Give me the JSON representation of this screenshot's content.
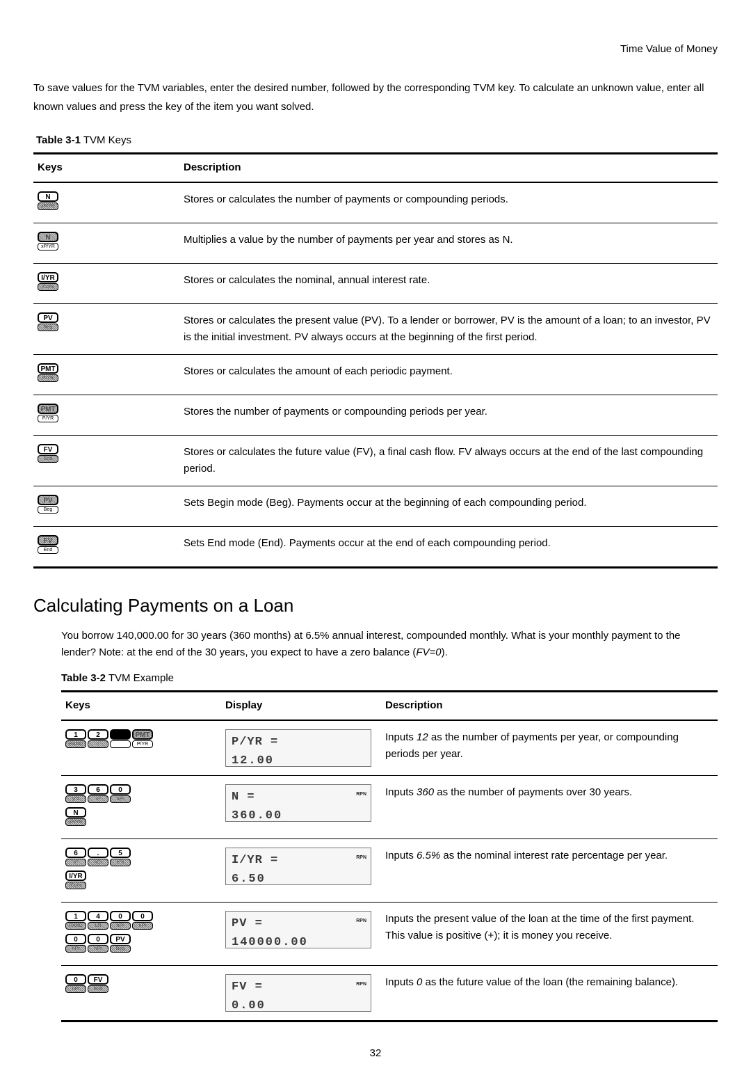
{
  "header": {
    "doc_title": "Time Value of Money"
  },
  "intro": "To save values for the TVM variables, enter the desired number, followed by the corresponding TVM key. To calculate an unknown value, enter all known values and press the key of the item you want solved.",
  "table1": {
    "caption_bold": "Table 3-1",
    "caption_rest": " TVM Keys",
    "cols": [
      "Keys",
      "Description"
    ],
    "rows": [
      {
        "keys": [
          [
            {
              "top": "N",
              "bot": "xP/YR",
              "bot_shaded": true
            }
          ]
        ],
        "desc": "Stores or calculates the number of payments or compounding periods."
      },
      {
        "keys": [
          [
            {
              "top": "N",
              "top_shaded": true,
              "bot": "xP/YR"
            }
          ]
        ],
        "desc": "Multiplies a value by the number of payments per year and stores as N."
      },
      {
        "keys": [
          [
            {
              "top": "I/YR",
              "bot": "IConv",
              "bot_shaded": true
            }
          ]
        ],
        "desc": "Stores or calculates the nominal, annual interest rate."
      },
      {
        "keys": [
          [
            {
              "top": "PV",
              "bot": "Beg",
              "bot_shaded": true
            }
          ]
        ],
        "desc": "Stores or calculates the present value (PV). To a lender or borrower, PV is the amount of a loan; to an investor, PV is the initial investment. PV always occurs at the beginning of the first period."
      },
      {
        "keys": [
          [
            {
              "top": "PMT",
              "bot": "P/YR",
              "bot_shaded": true
            }
          ]
        ],
        "desc": "Stores or calculates the amount of each periodic payment."
      },
      {
        "keys": [
          [
            {
              "top": "PMT",
              "top_shaded": true,
              "bot": "P/YR"
            }
          ]
        ],
        "desc": "Stores the number of payments or compounding periods per year."
      },
      {
        "keys": [
          [
            {
              "top": "FV",
              "bot": "End",
              "bot_shaded": true
            }
          ]
        ],
        "desc": "Stores or calculates the future value (FV), a final cash flow. FV always occurs at the end of the last compounding period."
      },
      {
        "keys": [
          [
            {
              "top": "PV",
              "top_shaded": true,
              "bot": "Beg"
            }
          ]
        ],
        "desc": "Sets Begin mode (Beg). Payments occur at the beginning of each compounding period."
      },
      {
        "keys": [
          [
            {
              "top": "FV",
              "top_shaded": true,
              "bot": "End"
            }
          ]
        ],
        "desc": "Sets End mode (End). Payments occur at the end of each compounding period."
      }
    ]
  },
  "section_heading": "Calculating Payments on a Loan",
  "section_para_a": "You borrow 140,000.00 for 30 years (360 months) at 6.5% annual interest, compounded monthly. What is your monthly payment to the lender? Note: at the end of the 30 years, you expect to have a zero balance (",
  "section_para_em": "FV=0",
  "section_para_b": ").",
  "table2": {
    "caption_bold": "Table 3-2",
    "caption_rest": " TVM Example",
    "cols": [
      "Keys",
      "Display",
      "Description"
    ],
    "rows": [
      {
        "keys": [
          [
            {
              "top": "1",
              "bot": "RAND",
              "bot_shaded": true
            },
            {
              "top": "2",
              "bot": "!",
              "bot_shaded": true
            },
            {
              "top": "",
              "top_black": true,
              "bot": ""
            },
            {
              "top": "PMT",
              "top_shaded": true,
              "bot": "P/YR"
            }
          ]
        ],
        "display": {
          "l1": "P/YR =",
          "l2": "12.00",
          "rpn": false
        },
        "desc_a": "Inputs ",
        "desc_em": "12",
        "desc_b": " as the number of payments per year, or compounding periods per year."
      },
      {
        "keys": [
          [
            {
              "top": "3",
              "bot": "y^x",
              "bot_shaded": true
            },
            {
              "top": "6",
              "bot": "x²",
              "bot_shaded": true
            },
            {
              "top": "0",
              "bot": "nPr",
              "bot_shaded": true
            }
          ],
          [
            {
              "top": "N",
              "bot": "xP/YR",
              "bot_shaded": true
            }
          ]
        ],
        "display": {
          "l1": "N =",
          "l2": "360.00",
          "rpn": true
        },
        "desc_a": "Inputs ",
        "desc_em": "360",
        "desc_b": " as the number of payments over 30 years."
      },
      {
        "keys": [
          [
            {
              "top": "6",
              "bot": "x²",
              "bot_shaded": true
            },
            {
              "top": ".",
              "bot": "nCr",
              "bot_shaded": true
            },
            {
              "top": "5",
              "bot": "e^x",
              "bot_shaded": true
            }
          ],
          [
            {
              "top": "I/YR",
              "bot": "IConv",
              "bot_shaded": true
            }
          ]
        ],
        "display": {
          "l1": "I/YR =",
          "l2": "6.50",
          "rpn": true
        },
        "desc_a": "Inputs ",
        "desc_em": "6.5%",
        "desc_b": " as the nominal interest rate percentage per year."
      },
      {
        "keys": [
          [
            {
              "top": "1",
              "bot": "RAND",
              "bot_shaded": true
            },
            {
              "top": "4",
              "bot": "LN",
              "bot_shaded": true
            },
            {
              "top": "0",
              "bot": "nPr",
              "bot_shaded": true
            },
            {
              "top": "0",
              "bot": "nPr",
              "bot_shaded": true
            }
          ],
          [
            {
              "top": "0",
              "bot": "nPr",
              "bot_shaded": true
            },
            {
              "top": "0",
              "bot": "nPr",
              "bot_shaded": true
            },
            {
              "top": "PV",
              "bot": "Beg",
              "bot_shaded": true
            }
          ]
        ],
        "display": {
          "l1": "PV =",
          "l2": "140000.00",
          "rpn": true
        },
        "desc_a": "Inputs the present value of the loan at the time of the first payment. This value is positive (+); it is money you receive.",
        "desc_em": "",
        "desc_b": ""
      },
      {
        "keys": [
          [
            {
              "top": "0",
              "bot": "nPr",
              "bot_shaded": true
            },
            {
              "top": "FV",
              "bot": "End",
              "bot_shaded": true
            }
          ]
        ],
        "display": {
          "l1": "FV =",
          "l2": "0.00",
          "rpn": true
        },
        "desc_a": "Inputs ",
        "desc_em": "0",
        "desc_b": " as the future value of the loan (the remaining balance)."
      }
    ]
  },
  "page_number": "32"
}
